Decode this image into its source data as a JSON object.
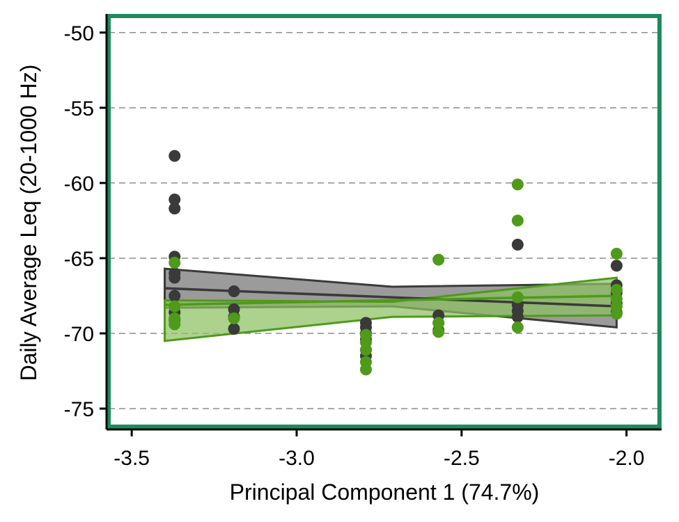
{
  "chart_data": {
    "type": "scatter",
    "title": "",
    "xlabel": "Principal Component 1 (74.7%)",
    "ylabel": "Daily Average Leq (20-1000 Hz)",
    "xlim": [
      -3.57,
      -1.9
    ],
    "ylim": [
      -76.2,
      -48.9
    ],
    "x_ticks": [
      -3.5,
      -3.0,
      -2.5,
      -2.0
    ],
    "x_tick_labels": [
      "-3.5",
      "-3.0",
      "-2.5",
      "-2.0"
    ],
    "y_ticks": [
      -50,
      -55,
      -60,
      -65,
      -70,
      -75
    ],
    "y_tick_labels": [
      "-50",
      "-55",
      "-60",
      "-65",
      "-70",
      "-75"
    ],
    "grid": "horizontal dashed",
    "legend": "none",
    "panel_border_color": "#1e8a5e",
    "series": [
      {
        "color": "#3a3a3a",
        "band_color": "#8a8a8a",
        "points": [
          {
            "x": -3.37,
            "y": -58.2
          },
          {
            "x": -3.37,
            "y": -61.1
          },
          {
            "x": -3.37,
            "y": -61.7
          },
          {
            "x": -3.37,
            "y": -64.9
          },
          {
            "x": -3.37,
            "y": -66.0
          },
          {
            "x": -3.37,
            "y": -66.3
          },
          {
            "x": -3.37,
            "y": -67.5
          },
          {
            "x": -3.37,
            "y": -68.6
          },
          {
            "x": -3.37,
            "y": -69.1
          },
          {
            "x": -3.19,
            "y": -67.2
          },
          {
            "x": -3.19,
            "y": -68.4
          },
          {
            "x": -3.19,
            "y": -68.9
          },
          {
            "x": -3.19,
            "y": -69.7
          },
          {
            "x": -2.79,
            "y": -69.3
          },
          {
            "x": -2.79,
            "y": -69.6
          },
          {
            "x": -2.79,
            "y": -70.0
          },
          {
            "x": -2.79,
            "y": -70.4
          },
          {
            "x": -2.79,
            "y": -71.1
          },
          {
            "x": -2.79,
            "y": -71.5
          },
          {
            "x": -2.57,
            "y": -68.8
          },
          {
            "x": -2.57,
            "y": -69.3
          },
          {
            "x": -2.57,
            "y": -69.8
          },
          {
            "x": -2.33,
            "y": -64.1
          },
          {
            "x": -2.33,
            "y": -68.1
          },
          {
            "x": -2.33,
            "y": -68.5
          },
          {
            "x": -2.33,
            "y": -68.9
          },
          {
            "x": -2.03,
            "y": -65.5
          },
          {
            "x": -2.03,
            "y": -66.8
          },
          {
            "x": -2.03,
            "y": -67.3
          },
          {
            "x": -2.03,
            "y": -68.0
          },
          {
            "x": -2.03,
            "y": -68.6
          }
        ],
        "fit": {
          "x": [
            -3.4,
            -2.03
          ],
          "y": [
            -67.0,
            -68.2
          ]
        },
        "band": {
          "x": [
            -3.4,
            -2.71,
            -2.03
          ],
          "upper": [
            -65.7,
            -66.9,
            -66.7
          ],
          "lower": [
            -68.3,
            -68.2,
            -69.6
          ]
        }
      },
      {
        "color": "#4f9a1a",
        "band_color": "#8cc063",
        "points": [
          {
            "x": -3.37,
            "y": -65.3
          },
          {
            "x": -3.37,
            "y": -68.2
          },
          {
            "x": -3.37,
            "y": -69.0
          },
          {
            "x": -3.37,
            "y": -69.4
          },
          {
            "x": -3.19,
            "y": -69.0
          },
          {
            "x": -2.79,
            "y": -70.1
          },
          {
            "x": -2.79,
            "y": -70.6
          },
          {
            "x": -2.79,
            "y": -71.1
          },
          {
            "x": -2.79,
            "y": -71.9
          },
          {
            "x": -2.79,
            "y": -72.4
          },
          {
            "x": -2.57,
            "y": -65.1
          },
          {
            "x": -2.57,
            "y": -69.3
          },
          {
            "x": -2.57,
            "y": -69.9
          },
          {
            "x": -2.33,
            "y": -60.1
          },
          {
            "x": -2.33,
            "y": -62.5
          },
          {
            "x": -2.33,
            "y": -67.6
          },
          {
            "x": -2.33,
            "y": -69.6
          },
          {
            "x": -2.03,
            "y": -64.7
          },
          {
            "x": -2.03,
            "y": -67.1
          },
          {
            "x": -2.03,
            "y": -67.7
          },
          {
            "x": -2.03,
            "y": -68.2
          },
          {
            "x": -2.03,
            "y": -68.7
          }
        ],
        "fit": {
          "x": [
            -3.4,
            -2.03
          ],
          "y": [
            -68.1,
            -67.5
          ]
        },
        "band": {
          "x": [
            -3.4,
            -2.71,
            -2.03
          ],
          "upper": [
            -67.8,
            -67.9,
            -66.3
          ],
          "lower": [
            -70.5,
            -68.9,
            -68.8
          ]
        }
      }
    ]
  }
}
